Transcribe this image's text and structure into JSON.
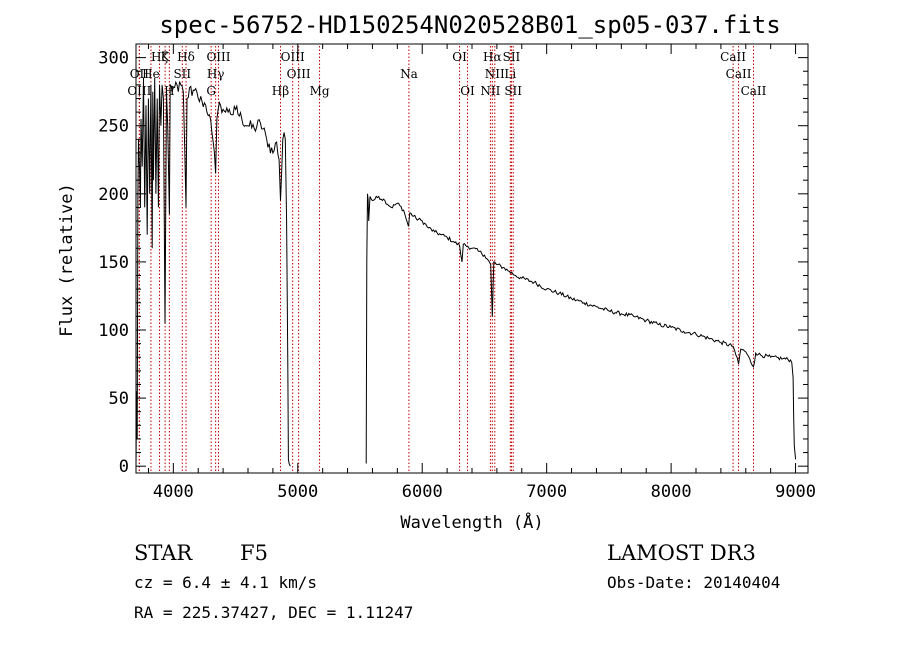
{
  "chart_data": {
    "type": "line",
    "title": "spec-56752-HD150254N020528B01_sp05-037.fits",
    "xlabel": "Wavelength (Å)",
    "ylabel": "Flux (relative)",
    "xlim": [
      3700,
      9100
    ],
    "ylim": [
      -5,
      310
    ],
    "xticks": [
      4000,
      5000,
      6000,
      7000,
      8000,
      9000
    ],
    "yticks": [
      0,
      50,
      100,
      150,
      200,
      250,
      300
    ],
    "spectrum_blue": {
      "x": [
        3700,
        3705,
        3710,
        3715,
        3720,
        3730,
        3735,
        3740,
        3750,
        3760,
        3770,
        3780,
        3790,
        3800,
        3810,
        3820,
        3830,
        3835,
        3840,
        3850,
        3860,
        3870,
        3880,
        3889,
        3900,
        3910,
        3920,
        3933,
        3945,
        3955,
        3968,
        3975,
        3990,
        4000,
        4020,
        4040,
        4060,
        4080,
        4102,
        4110,
        4130,
        4150,
        4170,
        4200,
        4230,
        4260,
        4290,
        4310,
        4320,
        4340,
        4350,
        4360,
        4380,
        4400,
        4420,
        4450,
        4480,
        4500,
        4550,
        4600,
        4650,
        4700,
        4750,
        4800,
        4830,
        4850,
        4861,
        4870,
        4880,
        4890,
        4900,
        4910,
        4920,
        4925,
        4930,
        4935,
        4940
      ],
      "y": [
        0,
        55,
        20,
        200,
        240,
        215,
        190,
        255,
        220,
        285,
        190,
        265,
        170,
        270,
        200,
        280,
        160,
        275,
        210,
        285,
        200,
        270,
        190,
        280,
        250,
        280,
        270,
        105,
        275,
        250,
        185,
        280,
        275,
        278,
        282,
        275,
        280,
        275,
        190,
        270,
        278,
        272,
        276,
        270,
        268,
        265,
        258,
        245,
        238,
        215,
        255,
        262,
        265,
        262,
        260,
        262,
        258,
        262,
        255,
        250,
        248,
        252,
        240,
        230,
        238,
        225,
        195,
        215,
        240,
        245,
        240,
        180,
        75,
        5,
        2,
        1,
        0
      ]
    },
    "spectrum_red": {
      "x": [
        5550,
        5555,
        5560,
        5565,
        5570,
        5580,
        5600,
        5650,
        5700,
        5750,
        5800,
        5850,
        5890,
        5900,
        5950,
        6000,
        6050,
        6100,
        6150,
        6200,
        6250,
        6300,
        6320,
        6330,
        6350,
        6400,
        6450,
        6500,
        6550,
        6563,
        6575,
        6600,
        6650,
        6700,
        6750,
        6800,
        6900,
        7000,
        7100,
        7200,
        7300,
        7400,
        7500,
        7600,
        7700,
        7800,
        7900,
        8000,
        8100,
        8200,
        8300,
        8400,
        8498,
        8510,
        8542,
        8560,
        8600,
        8662,
        8680,
        8700,
        8800,
        8900,
        8960,
        8970,
        8980,
        8985,
        8990,
        9000
      ],
      "y": [
        2,
        150,
        200,
        196,
        180,
        198,
        195,
        198,
        195,
        190,
        193,
        188,
        176,
        186,
        182,
        180,
        175,
        172,
        170,
        168,
        165,
        162,
        150,
        163,
        162,
        160,
        158,
        155,
        148,
        110,
        150,
        148,
        146,
        143,
        140,
        138,
        135,
        130,
        127,
        123,
        120,
        117,
        114,
        112,
        110,
        107,
        104,
        102,
        99,
        97,
        94,
        91,
        88,
        85,
        75,
        86,
        84,
        73,
        83,
        82,
        80,
        79,
        78,
        76,
        65,
        35,
        15,
        5
      ]
    },
    "lines": [
      {
        "name": "Hζ",
        "wave": 3889,
        "row": 1
      },
      {
        "name": "K",
        "wave": 3934,
        "row": 1
      },
      {
        "name": "Hδ",
        "wave": 4102,
        "row": 1
      },
      {
        "name": "OIII",
        "wave": 4363,
        "row": 1
      },
      {
        "name": "OIII",
        "wave": 4959,
        "row": 1
      },
      {
        "name": "OI",
        "wave": 6300,
        "row": 1
      },
      {
        "name": "Hα",
        "wave": 6563,
        "row": 1
      },
      {
        "name": "SII",
        "wave": 6717,
        "row": 1
      },
      {
        "name": "CaII",
        "wave": 8498,
        "row": 1
      },
      {
        "name": "OII",
        "wave": 3727,
        "row": 2
      },
      {
        "name": "He",
        "wave": 3820,
        "row": 2
      },
      {
        "name": "SII",
        "wave": 4072,
        "row": 2
      },
      {
        "name": "Hγ",
        "wave": 4340,
        "row": 2
      },
      {
        "name": "OIII",
        "wave": 5007,
        "row": 2
      },
      {
        "name": "Na",
        "wave": 5893,
        "row": 2
      },
      {
        "name": "NII",
        "wave": 6583,
        "row": 2
      },
      {
        "name": "Li",
        "wave": 6708,
        "row": 2
      },
      {
        "name": "CaII",
        "wave": 8542,
        "row": 2
      },
      {
        "name": "OIII",
        "wave": 3727,
        "row": 3
      },
      {
        "name": "H",
        "wave": 3968,
        "row": 3
      },
      {
        "name": "G",
        "wave": 4304,
        "row": 3
      },
      {
        "name": "Hβ",
        "wave": 4861,
        "row": 3
      },
      {
        "name": "Mg",
        "wave": 5175,
        "row": 3
      },
      {
        "name": "OI",
        "wave": 6364,
        "row": 3
      },
      {
        "name": "NII",
        "wave": 6548,
        "row": 3
      },
      {
        "name": "SII",
        "wave": 6731,
        "row": 3
      },
      {
        "name": "CaII",
        "wave": 8662,
        "row": 3
      }
    ]
  },
  "info": {
    "object_class": "STAR",
    "subclass": "F5",
    "cz": "cz = 6.4 ± 4.1 km/s",
    "coords": "RA = 225.37427, DEC =    1.11247",
    "survey": "LAMOST DR3",
    "obs_date": "Obs-Date: 20140404"
  },
  "colors": {
    "spectrum": "#000000",
    "line_marker": "#c00000"
  }
}
